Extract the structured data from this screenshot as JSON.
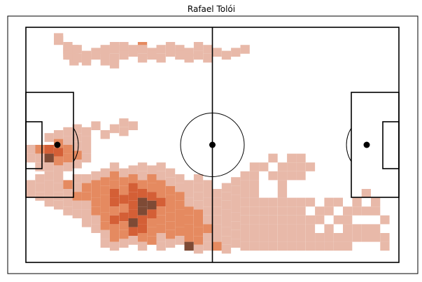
{
  "chart_data": {
    "type": "heatmap",
    "title": "Rafael Tolói",
    "xlabel": "",
    "ylabel": "",
    "pitch": {
      "length": 120,
      "width": 80
    },
    "bin_size": [
      3,
      3
    ],
    "grid": false,
    "colors": {
      "light": "#e8b9a9",
      "mid": "#e58a60",
      "strong": "#d45f36",
      "dark": "#7e4a35"
    },
    "cells": [
      [
        9,
        2,
        1
      ],
      [
        9,
        3,
        1
      ],
      [
        12,
        5,
        1
      ],
      [
        12,
        6,
        1
      ],
      [
        12,
        7,
        1
      ],
      [
        12,
        8,
        1
      ],
      [
        13,
        8,
        1
      ],
      [
        14,
        6,
        1
      ],
      [
        14,
        9,
        1
      ],
      [
        14,
        10,
        1
      ],
      [
        15,
        6,
        1
      ],
      [
        15,
        9,
        1
      ],
      [
        18,
        8,
        1
      ],
      [
        18,
        9,
        1
      ],
      [
        18,
        10,
        1
      ],
      [
        21,
        7,
        1
      ],
      [
        21,
        8,
        1
      ],
      [
        24,
        6,
        1
      ],
      [
        24,
        7,
        1
      ],
      [
        24,
        10,
        1
      ],
      [
        27,
        5,
        1
      ],
      [
        27,
        6,
        1
      ],
      [
        27,
        9,
        1
      ],
      [
        27,
        11,
        1
      ],
      [
        30,
        5,
        1
      ],
      [
        30,
        6,
        1
      ],
      [
        30,
        8,
        1
      ],
      [
        33,
        6,
        1
      ],
      [
        33,
        7,
        1
      ],
      [
        36,
        5,
        2
      ],
      [
        36,
        6,
        1
      ],
      [
        36,
        9,
        1
      ],
      [
        39,
        7,
        1
      ],
      [
        39,
        8,
        1
      ],
      [
        42,
        6,
        1
      ],
      [
        42,
        9,
        1
      ],
      [
        45,
        5,
        1
      ],
      [
        45,
        7,
        1
      ],
      [
        48,
        6,
        1
      ],
      [
        48,
        8,
        1
      ],
      [
        51,
        7,
        1
      ],
      [
        51,
        9,
        1
      ],
      [
        54,
        5,
        1
      ],
      [
        54,
        8,
        1
      ],
      [
        57,
        6,
        1
      ],
      [
        57,
        9,
        1
      ],
      [
        60,
        7,
        1
      ],
      [
        63,
        8,
        1
      ],
      [
        66,
        7,
        1
      ],
      [
        69,
        6,
        1
      ],
      [
        0,
        40,
        1
      ],
      [
        0,
        43,
        1
      ],
      [
        3,
        40,
        2
      ],
      [
        3,
        43,
        1
      ],
      [
        3,
        46,
        1
      ],
      [
        6,
        36,
        1
      ],
      [
        6,
        40,
        3
      ],
      [
        6,
        43,
        4
      ],
      [
        6,
        46,
        1
      ],
      [
        6,
        49,
        1
      ],
      [
        9,
        35,
        1
      ],
      [
        9,
        38,
        2
      ],
      [
        9,
        41,
        3
      ],
      [
        9,
        44,
        2
      ],
      [
        9,
        47,
        1
      ],
      [
        9,
        50,
        1
      ],
      [
        12,
        34,
        1
      ],
      [
        12,
        37,
        1
      ],
      [
        12,
        40,
        2
      ],
      [
        12,
        43,
        2
      ],
      [
        12,
        46,
        1
      ],
      [
        15,
        33,
        1
      ],
      [
        15,
        36,
        1
      ],
      [
        15,
        39,
        1
      ],
      [
        15,
        42,
        2
      ],
      [
        15,
        45,
        1
      ],
      [
        18,
        34,
        1
      ],
      [
        18,
        37,
        1
      ],
      [
        18,
        40,
        1
      ],
      [
        18,
        43,
        1
      ],
      [
        21,
        32,
        1
      ],
      [
        24,
        35,
        1
      ],
      [
        27,
        33,
        1
      ],
      [
        30,
        31,
        1
      ],
      [
        30,
        34,
        1
      ],
      [
        33,
        32,
        1
      ],
      [
        0,
        52,
        1
      ],
      [
        0,
        55,
        1
      ],
      [
        3,
        50,
        1
      ],
      [
        3,
        53,
        1
      ],
      [
        3,
        56,
        1
      ],
      [
        6,
        52,
        1
      ],
      [
        6,
        55,
        1
      ],
      [
        6,
        58,
        1
      ],
      [
        9,
        53,
        1
      ],
      [
        9,
        56,
        1
      ],
      [
        9,
        59,
        1
      ],
      [
        12,
        52,
        2
      ],
      [
        12,
        55,
        1
      ],
      [
        12,
        58,
        1
      ],
      [
        12,
        61,
        1
      ],
      [
        15,
        50,
        1
      ],
      [
        15,
        53,
        1
      ],
      [
        15,
        56,
        2
      ],
      [
        15,
        59,
        1
      ],
      [
        15,
        62,
        1
      ],
      [
        18,
        50,
        1
      ],
      [
        18,
        53,
        2
      ],
      [
        18,
        56,
        2
      ],
      [
        18,
        59,
        1
      ],
      [
        18,
        62,
        1
      ],
      [
        18,
        65,
        1
      ],
      [
        21,
        49,
        1
      ],
      [
        21,
        52,
        2
      ],
      [
        21,
        55,
        2
      ],
      [
        21,
        58,
        2
      ],
      [
        21,
        61,
        2
      ],
      [
        21,
        64,
        1
      ],
      [
        21,
        67,
        1
      ],
      [
        24,
        48,
        1
      ],
      [
        24,
        51,
        2
      ],
      [
        24,
        54,
        2
      ],
      [
        24,
        57,
        2
      ],
      [
        24,
        60,
        2
      ],
      [
        24,
        63,
        2
      ],
      [
        24,
        66,
        2
      ],
      [
        24,
        69,
        1
      ],
      [
        24,
        72,
        1
      ],
      [
        27,
        46,
        1
      ],
      [
        27,
        49,
        2
      ],
      [
        27,
        52,
        2
      ],
      [
        27,
        55,
        3
      ],
      [
        27,
        58,
        3
      ],
      [
        27,
        61,
        2
      ],
      [
        27,
        64,
        3
      ],
      [
        27,
        67,
        2
      ],
      [
        27,
        70,
        2
      ],
      [
        27,
        73,
        1
      ],
      [
        30,
        48,
        1
      ],
      [
        30,
        51,
        2
      ],
      [
        30,
        54,
        2
      ],
      [
        30,
        57,
        3
      ],
      [
        30,
        60,
        2
      ],
      [
        30,
        63,
        3
      ],
      [
        30,
        66,
        2
      ],
      [
        30,
        69,
        2
      ],
      [
        30,
        72,
        1
      ],
      [
        33,
        47,
        1
      ],
      [
        33,
        50,
        2
      ],
      [
        33,
        53,
        3
      ],
      [
        33,
        56,
        3
      ],
      [
        33,
        59,
        3
      ],
      [
        33,
        62,
        3
      ],
      [
        33,
        65,
        4
      ],
      [
        33,
        68,
        3
      ],
      [
        33,
        71,
        1
      ],
      [
        36,
        46,
        1
      ],
      [
        36,
        49,
        1
      ],
      [
        36,
        52,
        2
      ],
      [
        36,
        55,
        3
      ],
      [
        36,
        58,
        4
      ],
      [
        36,
        61,
        4
      ],
      [
        36,
        64,
        3
      ],
      [
        36,
        67,
        3
      ],
      [
        36,
        70,
        2
      ],
      [
        36,
        73,
        1
      ],
      [
        39,
        47,
        1
      ],
      [
        39,
        50,
        2
      ],
      [
        39,
        53,
        2
      ],
      [
        39,
        56,
        3
      ],
      [
        39,
        59,
        4
      ],
      [
        39,
        62,
        3
      ],
      [
        39,
        65,
        2
      ],
      [
        39,
        68,
        2
      ],
      [
        39,
        71,
        2
      ],
      [
        42,
        46,
        1
      ],
      [
        42,
        49,
        1
      ],
      [
        42,
        52,
        2
      ],
      [
        42,
        55,
        2
      ],
      [
        42,
        58,
        3
      ],
      [
        42,
        61,
        2
      ],
      [
        42,
        64,
        2
      ],
      [
        42,
        67,
        2
      ],
      [
        42,
        70,
        1
      ],
      [
        42,
        73,
        1
      ],
      [
        45,
        48,
        1
      ],
      [
        45,
        51,
        1
      ],
      [
        45,
        54,
        2
      ],
      [
        45,
        57,
        2
      ],
      [
        45,
        60,
        2
      ],
      [
        45,
        63,
        2
      ],
      [
        45,
        66,
        2
      ],
      [
        45,
        69,
        2
      ],
      [
        45,
        72,
        1
      ],
      [
        48,
        50,
        1
      ],
      [
        48,
        53,
        1
      ],
      [
        48,
        56,
        2
      ],
      [
        48,
        59,
        2
      ],
      [
        48,
        62,
        2
      ],
      [
        48,
        65,
        2
      ],
      [
        48,
        68,
        2
      ],
      [
        48,
        71,
        1
      ],
      [
        51,
        52,
        1
      ],
      [
        51,
        55,
        1
      ],
      [
        51,
        58,
        1
      ],
      [
        51,
        61,
        2
      ],
      [
        51,
        64,
        2
      ],
      [
        51,
        67,
        2
      ],
      [
        51,
        70,
        2
      ],
      [
        51,
        73,
        4
      ],
      [
        54,
        50,
        1
      ],
      [
        54,
        53,
        1
      ],
      [
        54,
        56,
        1
      ],
      [
        54,
        59,
        1
      ],
      [
        54,
        62,
        2
      ],
      [
        54,
        65,
        2
      ],
      [
        54,
        68,
        2
      ],
      [
        54,
        71,
        2
      ],
      [
        54,
        74,
        1
      ],
      [
        57,
        52,
        1
      ],
      [
        57,
        55,
        1
      ],
      [
        57,
        58,
        1
      ],
      [
        57,
        61,
        1
      ],
      [
        57,
        64,
        1
      ],
      [
        57,
        67,
        2
      ],
      [
        57,
        70,
        1
      ],
      [
        57,
        73,
        1
      ],
      [
        60,
        55,
        1
      ],
      [
        60,
        58,
        1
      ],
      [
        60,
        61,
        1
      ],
      [
        60,
        64,
        1
      ],
      [
        60,
        67,
        1
      ],
      [
        60,
        70,
        1
      ],
      [
        60,
        73,
        2
      ],
      [
        63,
        53,
        1
      ],
      [
        63,
        56,
        1
      ],
      [
        63,
        59,
        1
      ],
      [
        63,
        62,
        1
      ],
      [
        63,
        65,
        1
      ],
      [
        63,
        68,
        1
      ],
      [
        63,
        71,
        1
      ],
      [
        63,
        74,
        1
      ],
      [
        66,
        51,
        1
      ],
      [
        66,
        54,
        1
      ],
      [
        66,
        57,
        1
      ],
      [
        66,
        60,
        1
      ],
      [
        66,
        63,
        1
      ],
      [
        66,
        66,
        1
      ],
      [
        66,
        69,
        1
      ],
      [
        66,
        72,
        1
      ],
      [
        69,
        49,
        1
      ],
      [
        69,
        52,
        1
      ],
      [
        69,
        55,
        1
      ],
      [
        69,
        58,
        1
      ],
      [
        69,
        61,
        1
      ],
      [
        69,
        64,
        1
      ],
      [
        69,
        67,
        1
      ],
      [
        69,
        70,
        1
      ],
      [
        69,
        73,
        1
      ],
      [
        72,
        46,
        1
      ],
      [
        72,
        49,
        1
      ],
      [
        72,
        52,
        1
      ],
      [
        72,
        55,
        1
      ],
      [
        72,
        58,
        1
      ],
      [
        72,
        61,
        1
      ],
      [
        72,
        64,
        1
      ],
      [
        72,
        67,
        1
      ],
      [
        72,
        70,
        1
      ],
      [
        72,
        73,
        1
      ],
      [
        75,
        46,
        1
      ],
      [
        75,
        58,
        1
      ],
      [
        75,
        61,
        1
      ],
      [
        75,
        64,
        1
      ],
      [
        75,
        67,
        1
      ],
      [
        75,
        70,
        1
      ],
      [
        75,
        73,
        1
      ],
      [
        78,
        43,
        1
      ],
      [
        78,
        49,
        1
      ],
      [
        78,
        58,
        1
      ],
      [
        78,
        61,
        1
      ],
      [
        78,
        64,
        1
      ],
      [
        78,
        67,
        1
      ],
      [
        78,
        70,
        1
      ],
      [
        78,
        73,
        1
      ],
      [
        81,
        46,
        1
      ],
      [
        81,
        49,
        1
      ],
      [
        81,
        52,
        1
      ],
      [
        81,
        58,
        1
      ],
      [
        81,
        61,
        1
      ],
      [
        81,
        64,
        1
      ],
      [
        81,
        67,
        1
      ],
      [
        81,
        70,
        1
      ],
      [
        81,
        73,
        1
      ],
      [
        84,
        43,
        1
      ],
      [
        84,
        46,
        1
      ],
      [
        84,
        49,
        1
      ],
      [
        84,
        61,
        1
      ],
      [
        84,
        64,
        1
      ],
      [
        84,
        67,
        1
      ],
      [
        84,
        70,
        1
      ],
      [
        84,
        73,
        1
      ],
      [
        87,
        43,
        1
      ],
      [
        87,
        46,
        1
      ],
      [
        87,
        49,
        1
      ],
      [
        87,
        61,
        1
      ],
      [
        87,
        64,
        1
      ],
      [
        87,
        67,
        1
      ],
      [
        87,
        70,
        1
      ],
      [
        87,
        73,
        1
      ],
      [
        90,
        46,
        1
      ],
      [
        90,
        64,
        1
      ],
      [
        90,
        67,
        1
      ],
      [
        90,
        70,
        1
      ],
      [
        90,
        73,
        1
      ],
      [
        93,
        64,
        1
      ],
      [
        93,
        70,
        1
      ],
      [
        93,
        73,
        1
      ],
      [
        96,
        58,
        1
      ],
      [
        96,
        61,
        1
      ],
      [
        96,
        67,
        1
      ],
      [
        96,
        70,
        1
      ],
      [
        96,
        73,
        1
      ],
      [
        99,
        58,
        1
      ],
      [
        99,
        70,
        1
      ],
      [
        99,
        73,
        1
      ],
      [
        102,
        61,
        1
      ],
      [
        102,
        67,
        1
      ],
      [
        102,
        70,
        1
      ],
      [
        102,
        73,
        1
      ],
      [
        105,
        58,
        1
      ],
      [
        105,
        67,
        1
      ],
      [
        105,
        70,
        1
      ],
      [
        108,
        55,
        1
      ],
      [
        108,
        61,
        1
      ],
      [
        108,
        67,
        1
      ],
      [
        111,
        58,
        1
      ],
      [
        111,
        67,
        1
      ],
      [
        111,
        70,
        1
      ],
      [
        114,
        64,
        1
      ],
      [
        114,
        70,
        1
      ],
      [
        114,
        73,
        1
      ],
      [
        99,
        64,
        1
      ],
      [
        93,
        61,
        1
      ],
      [
        90,
        58,
        1
      ],
      [
        87,
        58,
        1
      ],
      [
        84,
        58,
        1
      ],
      [
        81,
        55,
        1
      ],
      [
        108,
        70,
        1
      ],
      [
        105,
        61,
        1
      ],
      [
        102,
        64,
        1
      ],
      [
        111,
        61,
        1
      ]
    ]
  }
}
